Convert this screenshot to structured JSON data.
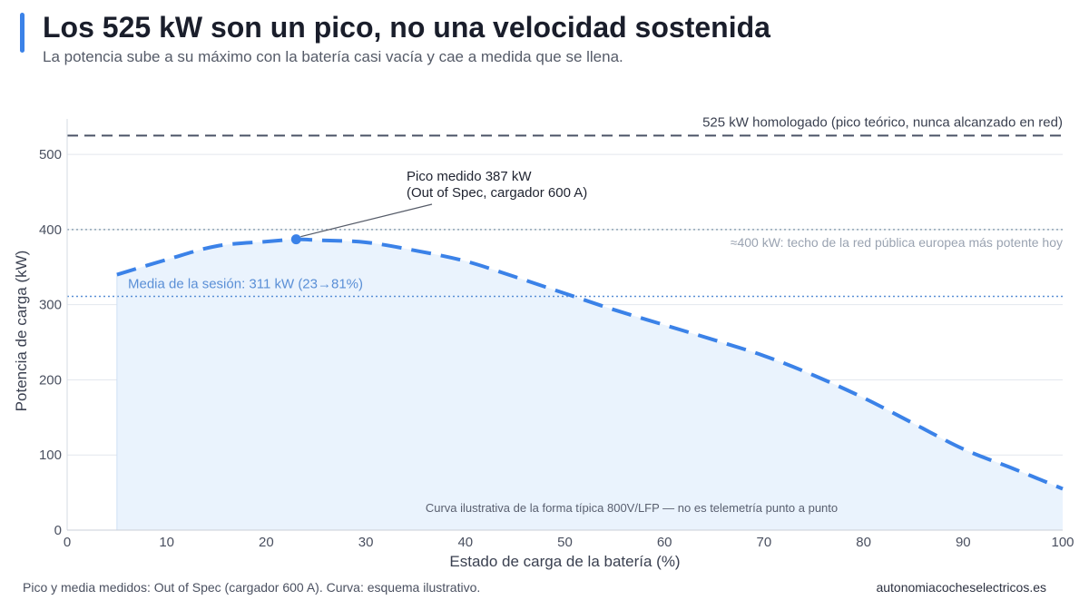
{
  "header": {
    "title": "Los 525 kW son un pico, no una velocidad sostenida",
    "subtitle": "La potencia sube a su máximo con la batería casi vacía y cae a medida que se llena."
  },
  "footer": {
    "source": "Pico y media medidos: Out of Spec (cargador 600 A). Curva: esquema ilustrativo.",
    "site": "autonomiacocheselectricos.es"
  },
  "colors": {
    "accent": "#3b82e8",
    "curve": "#3b82e8",
    "area_fill": "#eaf3fd",
    "ref_525": "#4a5366",
    "ref_400": "#8fa3b5",
    "mean_line": "#5a8fd6",
    "grid": "#e3e7ee",
    "axis_text": "#4a5060",
    "muted_text": "#9aa3b1"
  },
  "chart_data": {
    "type": "line",
    "xlabel": "Estado de carga de la batería (%)",
    "ylabel": "Potencia de carga (kW)",
    "xlim": [
      0,
      100
    ],
    "ylim": [
      0,
      540
    ],
    "xticks": [
      0,
      10,
      20,
      30,
      40,
      50,
      60,
      70,
      80,
      90,
      100
    ],
    "yticks": [
      0,
      100,
      200,
      300,
      400,
      500
    ],
    "grid": "horizontal",
    "series": [
      {
        "style": "dashed",
        "x": [
          5,
          10,
          15,
          20,
          23,
          25,
          30,
          35,
          40,
          45,
          50,
          55,
          60,
          65,
          70,
          75,
          80,
          85,
          90,
          95,
          100
        ],
        "y": [
          340,
          360,
          378,
          384,
          387,
          386,
          383,
          372,
          358,
          337,
          315,
          293,
          273,
          253,
          232,
          206,
          176,
          142,
          108,
          82,
          55
        ]
      }
    ],
    "peak_point": {
      "x": 23,
      "y": 387
    },
    "annotations": {
      "peak_label_line1": "Pico medido 387 kW",
      "peak_label_line2": "(Out of Spec, cargador 600 A)",
      "mean_label": "Media de la sesión: 311 kW (23→81%)",
      "ref_525_label": "525 kW homologado (pico teórico, nunca alcanzado en red)",
      "ref_400_label": "≈400 kW: techo de la red pública europea más potente hoy",
      "note": "Curva ilustrativa de la forma típica 800V/LFP — no es telemetría punto a punto"
    },
    "reference_lines": {
      "homologated": 525,
      "network_ceiling": 400,
      "session_mean": 311
    }
  }
}
